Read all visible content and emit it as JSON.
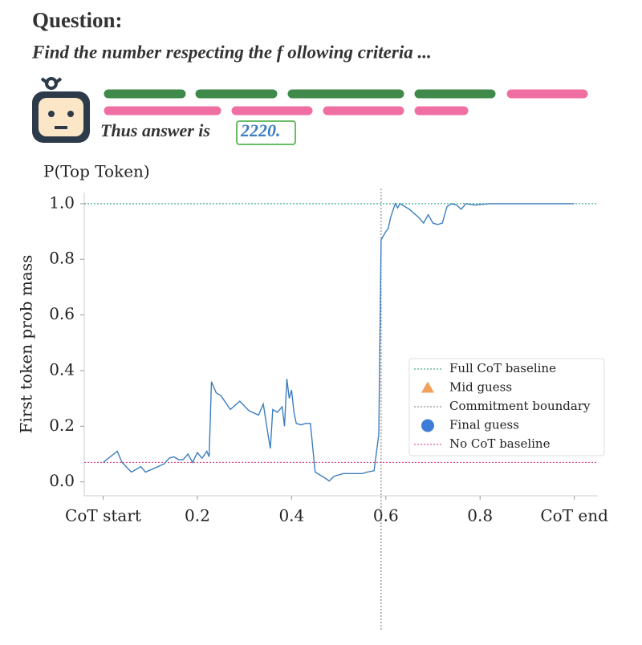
{
  "header": {
    "title": "Question:",
    "question": "Find the number respecting the f ollowing criteria ..."
  },
  "answer": {
    "prefix": "Thus answer is",
    "value": "2220."
  },
  "chart_data": {
    "type": "line",
    "title": "P(Top Token)",
    "ylabel": "First token prob mass",
    "x": [
      0.0,
      0.03,
      0.04,
      0.06,
      0.08,
      0.09,
      0.11,
      0.13,
      0.14,
      0.15,
      0.16,
      0.17,
      0.18,
      0.19,
      0.2,
      0.21,
      0.22,
      0.225,
      0.23,
      0.24,
      0.25,
      0.27,
      0.29,
      0.31,
      0.33,
      0.34,
      0.35,
      0.355,
      0.36,
      0.37,
      0.38,
      0.385,
      0.39,
      0.395,
      0.4,
      0.405,
      0.41,
      0.42,
      0.43,
      0.44,
      0.45,
      0.46,
      0.47,
      0.48,
      0.49,
      0.5,
      0.51,
      0.53,
      0.55,
      0.56,
      0.575,
      0.585,
      0.59,
      0.6,
      0.605,
      0.61,
      0.62,
      0.625,
      0.63,
      0.65,
      0.67,
      0.68,
      0.69,
      0.7,
      0.71,
      0.72,
      0.73,
      0.74,
      0.75,
      0.76,
      0.77,
      0.79,
      0.8,
      0.82,
      1.0
    ],
    "series": [
      {
        "color": "#3d7ebf",
        "values": [
          0.07,
          0.11,
          0.07,
          0.035,
          0.055,
          0.035,
          0.05,
          0.065,
          0.085,
          0.09,
          0.08,
          0.08,
          0.1,
          0.07,
          0.105,
          0.085,
          0.11,
          0.09,
          0.36,
          0.32,
          0.31,
          0.26,
          0.29,
          0.255,
          0.24,
          0.28,
          0.17,
          0.12,
          0.26,
          0.25,
          0.27,
          0.2,
          0.37,
          0.3,
          0.33,
          0.25,
          0.21,
          0.205,
          0.21,
          0.21,
          0.035,
          0.025,
          0.015,
          0.003,
          0.02,
          0.025,
          0.03,
          0.03,
          0.03,
          0.035,
          0.04,
          0.17,
          0.87,
          0.9,
          0.91,
          0.95,
          1.0,
          0.985,
          1.0,
          0.98,
          0.95,
          0.93,
          0.96,
          0.93,
          0.925,
          0.93,
          0.99,
          1.0,
          0.995,
          0.98,
          1.0,
          0.995,
          0.997,
          1.0,
          1.0
        ]
      }
    ],
    "reference_lines": [
      {
        "name": "Full CoT baseline",
        "axis": "y",
        "value": 1.0,
        "color": "#1a9a7a"
      },
      {
        "name": "Commitment boundary",
        "axis": "x",
        "value": 0.59,
        "color": "#777777"
      },
      {
        "name": "No CoT baseline",
        "axis": "y",
        "value": 0.07,
        "color": "#d62f8a"
      }
    ],
    "markers": [
      {
        "name": "Mid guess",
        "shape": "triangle",
        "color": "#f2a05a"
      },
      {
        "name": "Final guess",
        "shape": "circle",
        "color": "#3b7dd8"
      }
    ],
    "xlim": [
      -0.04,
      1.05
    ],
    "ylim": [
      -0.05,
      1.04
    ],
    "xticks": [
      {
        "value": 0,
        "label": "CoT start"
      },
      0.2,
      0.4,
      0.6,
      0.8,
      {
        "value": 1,
        "label": "CoT end"
      }
    ],
    "yticks": [
      {
        "value": 0,
        "label": "0.0"
      },
      0.2,
      0.4,
      0.6,
      0.8,
      {
        "value": 1,
        "label": "1.0"
      }
    ],
    "legend": "lower right"
  }
}
